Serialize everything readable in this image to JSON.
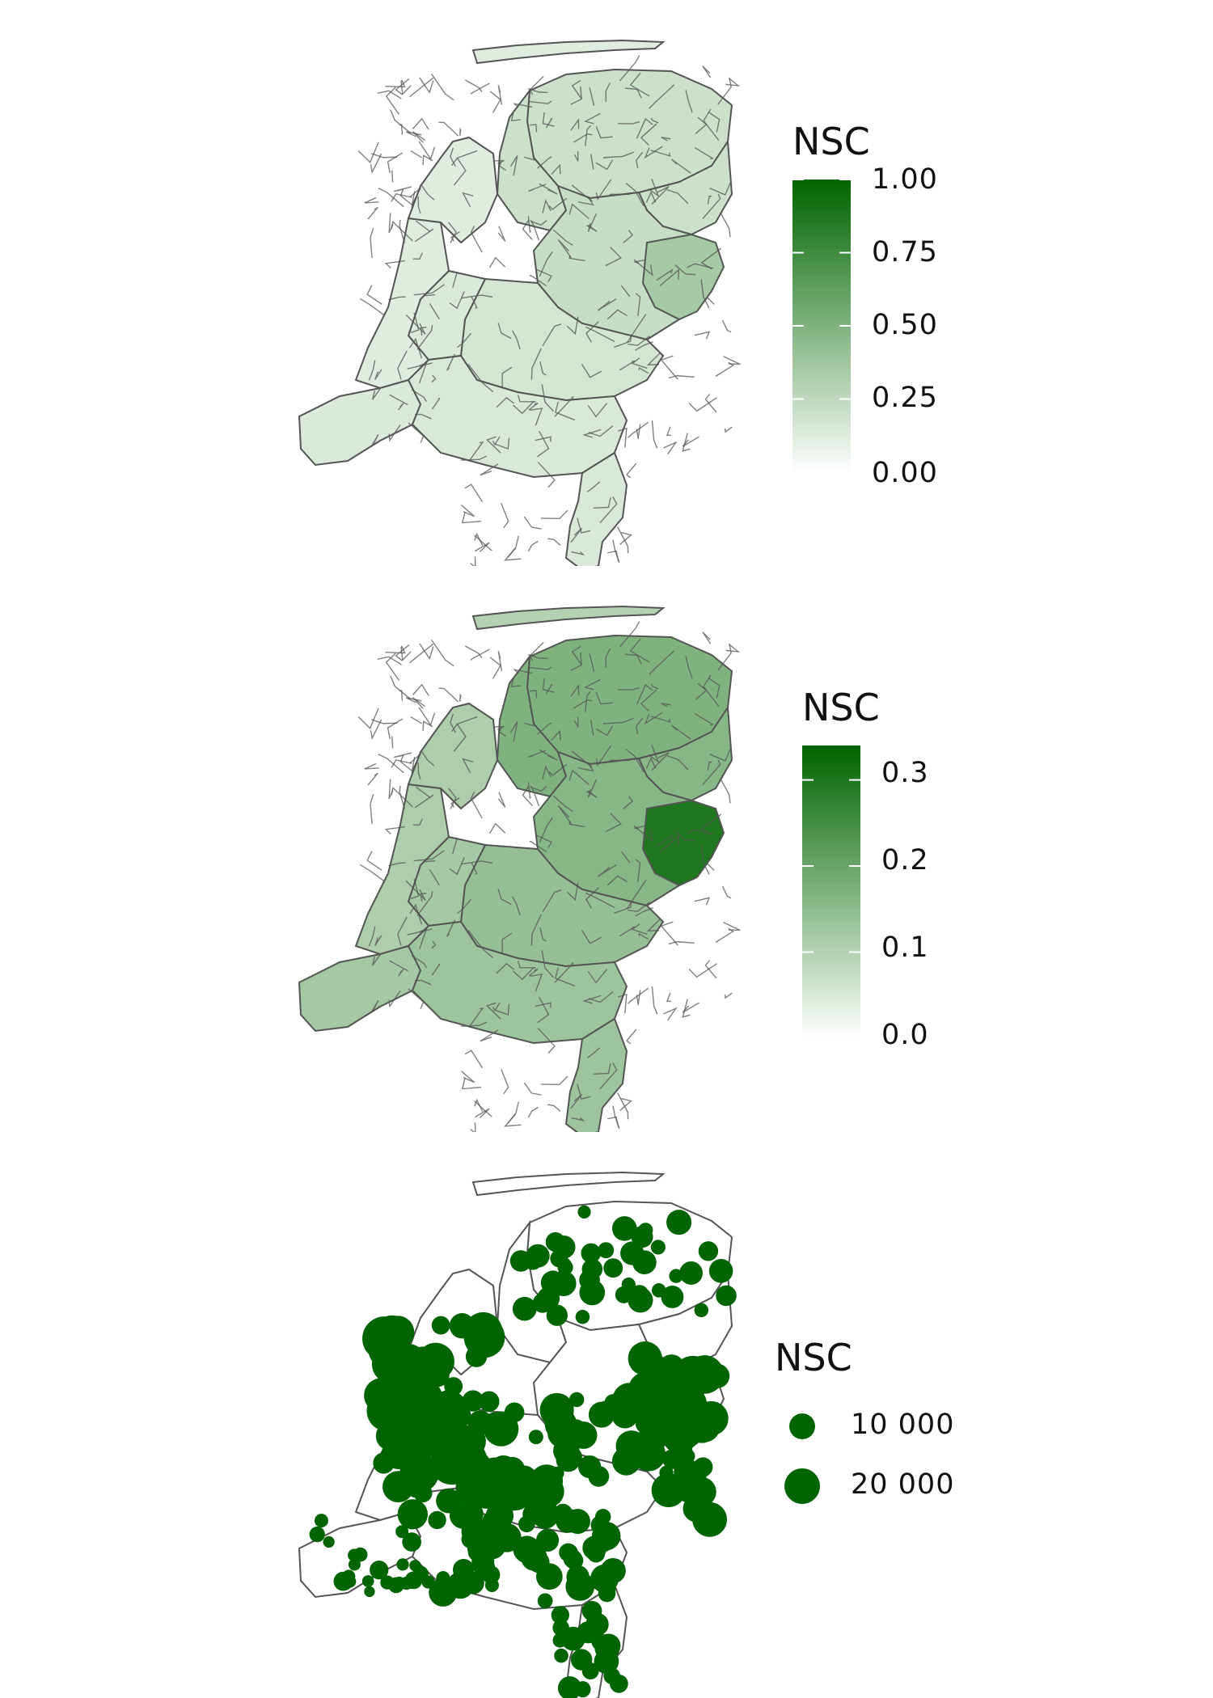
{
  "colors": {
    "low": "#ffffff",
    "high": "#006400",
    "border": "#555555",
    "bubble": "#006400"
  },
  "panels": [
    {
      "id": "p1",
      "legend_title": "NSC",
      "legend_type": "continuous",
      "scale_min": 0,
      "scale_max": 1,
      "ticks": [
        "1.00",
        "0.75",
        "0.50",
        "0.25",
        "0.00"
      ],
      "tick_values": [
        1.0,
        0.75,
        0.5,
        0.25,
        0.0
      ],
      "region_values": {
        "north": 0.2,
        "northeast": 0.2,
        "friesland": 0.2,
        "east": 0.22,
        "twente": 0.35,
        "gelderland": 0.17,
        "center": 0.14,
        "holland": 0.12,
        "zeeland": 0.14,
        "brabant": 0.15,
        "limburg": 0.15,
        "islands": 0.12,
        "noordholland": 0.12
      }
    },
    {
      "id": "p2",
      "legend_title": "NSC",
      "legend_type": "continuous",
      "scale_min": 0,
      "scale_max": 0.34,
      "ticks": [
        "0.3",
        "0.2",
        "0.1",
        "0.0"
      ],
      "tick_values": [
        0.3,
        0.2,
        0.1,
        0.0
      ],
      "region_values": {
        "north": 0.17,
        "northeast": 0.16,
        "friesland": 0.17,
        "east": 0.16,
        "twente": 0.3,
        "gelderland": 0.14,
        "center": 0.12,
        "holland": 0.11,
        "zeeland": 0.12,
        "brabant": 0.13,
        "limburg": 0.13,
        "islands": 0.1,
        "noordholland": 0.11
      }
    },
    {
      "id": "p3",
      "legend_title": "NSC",
      "legend_type": "size",
      "size_keys": [
        {
          "label": "10 000",
          "value": 10000
        },
        {
          "label": "20 000",
          "value": 20000
        }
      ]
    }
  ]
}
